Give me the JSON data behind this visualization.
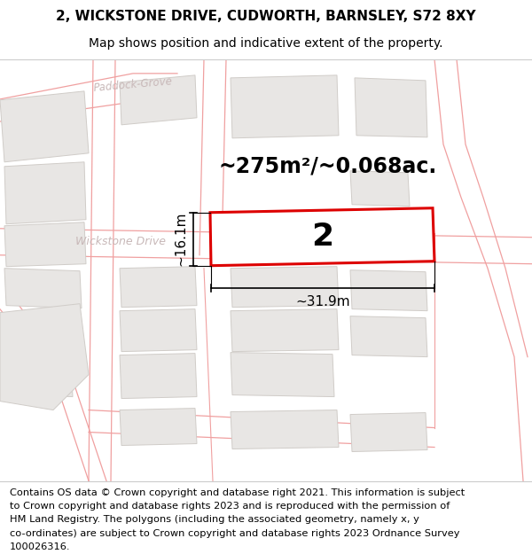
{
  "title_line1": "2, WICKSTONE DRIVE, CUDWORTH, BARNSLEY, S72 8XY",
  "title_line2": "Map shows position and indicative extent of the property.",
  "area_label": "~275m²/~0.068ac.",
  "plot_number": "2",
  "dim_width": "~31.9m",
  "dim_height": "~16.1m",
  "footer_lines": [
    "Contains OS data © Crown copyright and database right 2021. This information is subject",
    "to Crown copyright and database rights 2023 and is reproduced with the permission of",
    "HM Land Registry. The polygons (including the associated geometry, namely x, y",
    "co-ordinates) are subject to Crown copyright and database rights 2023 Ordnance Survey",
    "100026316."
  ],
  "map_bg": "#f8f6f4",
  "road_line_color": "#f0a0a0",
  "block_fill": "#e8e6e4",
  "block_edge": "#d0ccc8",
  "highlight_color": "#dd0000",
  "highlight_fill": "#ffffff",
  "road_label_color": "#c8b8b8",
  "title_fontsize": 11,
  "subtitle_fontsize": 10,
  "footer_fontsize": 8.2,
  "area_fontsize": 17,
  "dim_fontsize": 11,
  "plot_num_fontsize": 26
}
